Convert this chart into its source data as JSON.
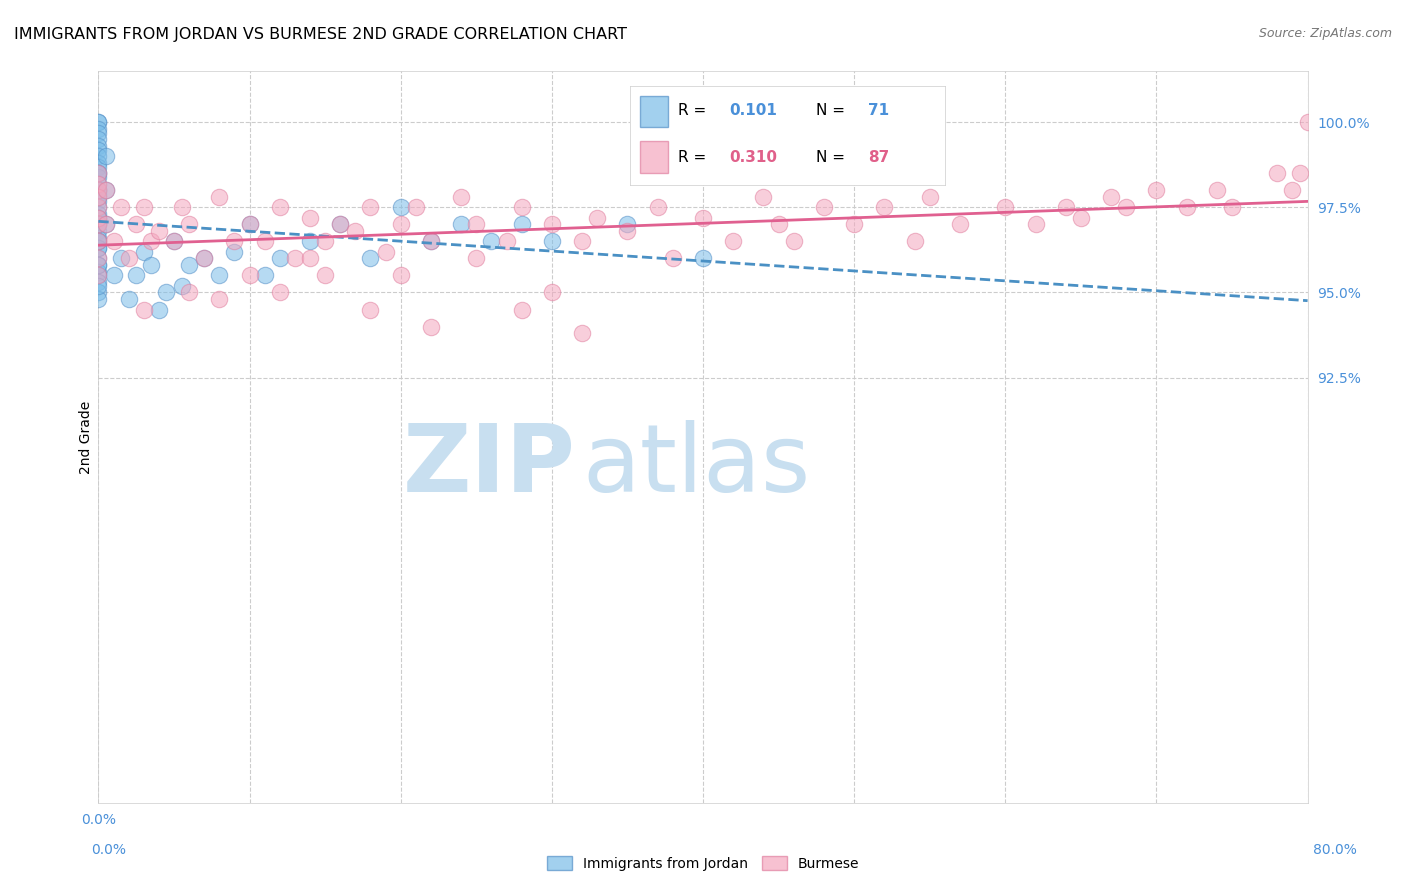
{
  "title": "IMMIGRANTS FROM JORDAN VS BURMESE 2ND GRADE CORRELATION CHART",
  "source": "Source: ZipAtlas.com",
  "ylabel_label": "2nd Grade",
  "legend_blue_r_val": "0.101",
  "legend_blue_n_val": "71",
  "legend_pink_r_val": "0.310",
  "legend_pink_n_val": "87",
  "legend_label_blue": "Immigrants from Jordan",
  "legend_label_pink": "Burmese",
  "blue_color": "#7bbde8",
  "pink_color": "#f4a7be",
  "blue_line_color": "#4a90c4",
  "pink_line_color": "#e06090",
  "blue_marker_edge": "#5590c8",
  "pink_marker_edge": "#e080a0",
  "blue_r_text_color": "#4a90d9",
  "pink_r_text_color": "#e0608a",
  "right_tick_color": "#4a90d9",
  "blue_points_x": [
    0.0,
    0.0,
    0.0,
    0.0,
    0.0,
    0.0,
    0.0,
    0.0,
    0.0,
    0.0,
    0.0,
    0.0,
    0.0,
    0.0,
    0.0,
    0.0,
    0.0,
    0.0,
    0.0,
    0.0,
    0.0,
    0.0,
    0.0,
    0.0,
    0.0,
    0.0,
    0.0,
    0.0,
    0.0,
    0.0,
    0.0,
    0.0,
    0.0,
    0.0,
    0.0,
    0.0,
    0.0,
    0.0,
    0.0,
    0.0,
    0.5,
    0.5,
    0.5,
    1.0,
    1.5,
    2.0,
    2.5,
    3.0,
    3.5,
    4.0,
    4.5,
    5.0,
    5.5,
    6.0,
    7.0,
    8.0,
    9.0,
    10.0,
    11.0,
    12.0,
    14.0,
    16.0,
    18.0,
    20.0,
    22.0,
    24.0,
    26.0,
    28.0,
    30.0,
    35.0,
    40.0
  ],
  "blue_points_y": [
    100.0,
    100.0,
    99.8,
    99.7,
    99.5,
    99.3,
    99.2,
    99.0,
    98.8,
    98.7,
    98.5,
    98.4,
    98.2,
    98.0,
    97.9,
    97.7,
    97.5,
    97.3,
    97.2,
    97.0,
    96.8,
    96.6,
    96.5,
    96.3,
    96.0,
    95.8,
    95.6,
    95.5,
    95.3,
    95.0,
    94.8,
    98.5,
    97.8,
    97.0,
    96.3,
    95.8,
    95.2,
    98.0,
    97.2,
    96.5,
    99.0,
    98.0,
    97.0,
    95.5,
    96.0,
    94.8,
    95.5,
    96.2,
    95.8,
    94.5,
    95.0,
    96.5,
    95.2,
    95.8,
    96.0,
    95.5,
    96.2,
    97.0,
    95.5,
    96.0,
    96.5,
    97.0,
    96.0,
    97.5,
    96.5,
    97.0,
    96.5,
    97.0,
    96.5,
    97.0,
    96.0
  ],
  "pink_points_x": [
    0.0,
    0.0,
    0.0,
    0.0,
    0.0,
    0.0,
    0.0,
    0.0,
    0.0,
    0.0,
    0.5,
    0.5,
    1.0,
    1.5,
    2.0,
    2.5,
    3.0,
    3.5,
    4.0,
    5.0,
    5.5,
    6.0,
    7.0,
    8.0,
    9.0,
    10.0,
    11.0,
    12.0,
    13.0,
    14.0,
    15.0,
    16.0,
    17.0,
    18.0,
    19.0,
    20.0,
    21.0,
    22.0,
    24.0,
    25.0,
    27.0,
    28.0,
    30.0,
    32.0,
    33.0,
    35.0,
    37.0,
    38.0,
    40.0,
    42.0,
    44.0,
    45.0,
    46.0,
    48.0,
    50.0,
    52.0,
    54.0,
    55.0,
    57.0,
    60.0,
    62.0,
    64.0,
    65.0,
    67.0,
    68.0,
    70.0,
    72.0,
    74.0,
    75.0,
    78.0,
    79.0,
    79.5,
    80.0,
    3.0,
    6.0,
    8.0,
    10.0,
    12.0,
    14.0,
    15.0,
    18.0,
    20.0,
    22.0,
    25.0,
    28.0,
    30.0,
    32.0
  ],
  "pink_points_y": [
    98.5,
    98.0,
    97.5,
    97.0,
    96.5,
    96.0,
    95.5,
    98.2,
    97.8,
    97.2,
    98.0,
    97.0,
    96.5,
    97.5,
    96.0,
    97.0,
    97.5,
    96.5,
    96.8,
    96.5,
    97.5,
    97.0,
    96.0,
    97.8,
    96.5,
    97.0,
    96.5,
    97.5,
    96.0,
    97.2,
    96.5,
    97.0,
    96.8,
    97.5,
    96.2,
    97.0,
    97.5,
    96.5,
    97.8,
    97.0,
    96.5,
    97.5,
    97.0,
    96.5,
    97.2,
    96.8,
    97.5,
    96.0,
    97.2,
    96.5,
    97.8,
    97.0,
    96.5,
    97.5,
    97.0,
    97.5,
    96.5,
    97.8,
    97.0,
    97.5,
    97.0,
    97.5,
    97.2,
    97.8,
    97.5,
    98.0,
    97.5,
    98.0,
    97.5,
    98.5,
    98.0,
    98.5,
    100.0,
    94.5,
    95.0,
    94.8,
    95.5,
    95.0,
    96.0,
    95.5,
    94.5,
    95.5,
    94.0,
    96.0,
    94.5,
    95.0,
    93.8
  ],
  "xlim": [
    0.0,
    80.0
  ],
  "ylim": [
    80.0,
    101.5
  ],
  "xticks": [
    0.0,
    10.0,
    20.0,
    30.0,
    40.0,
    50.0,
    60.0,
    70.0,
    80.0
  ],
  "yticks_right": [
    92.5,
    95.0,
    97.5,
    100.0
  ],
  "yticks_grid": [
    92.5,
    95.0,
    97.5,
    100.0
  ],
  "xticks_grid": [
    0.0,
    10.0,
    20.0,
    30.0,
    40.0,
    50.0,
    60.0,
    70.0,
    80.0
  ],
  "grid_color": "#cccccc",
  "background_color": "#ffffff",
  "watermark_zip": "ZIP",
  "watermark_atlas": "atlas",
  "watermark_color_zip": "#c8dff0",
  "watermark_color_atlas": "#c8dff0"
}
